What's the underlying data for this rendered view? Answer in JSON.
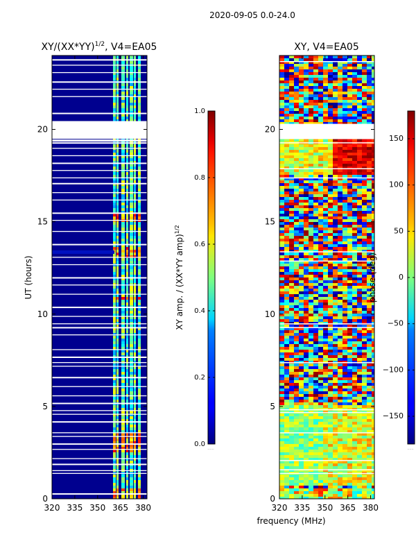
{
  "suptitle": "2020-09-05 0.0-24.0",
  "shared_xlabel": "frequency (MHz)",
  "chart_data": [
    {
      "type": "heatmap",
      "title": "XY/(XX*YY)^{1/2}, V4=EA05",
      "title_main": "XY/(XX*YY)",
      "title_sup": "1/2",
      "title_rest": ", V4=EA05",
      "ylabel": "UT (hours)",
      "xlim": [
        320,
        382.5
      ],
      "ylim": [
        0,
        24
      ],
      "x_ticks": [
        "320",
        "335",
        "350",
        "365",
        "380"
      ],
      "x_tick_values": [
        320,
        335,
        350,
        365,
        380
      ],
      "y_ticks": [
        "0",
        "5",
        "10",
        "15",
        "20"
      ],
      "y_tick_values": [
        0,
        5,
        10,
        15,
        20
      ],
      "colorbar": {
        "label_main": "XY amp. / (XX*YY amp)",
        "label_sup": "1/2",
        "range": [
          0.0,
          1.0
        ],
        "ticks": [
          "0.0",
          "0.2",
          "0.4",
          "0.6",
          "0.8",
          "1.0"
        ],
        "tick_values": [
          0.0,
          0.2,
          0.4,
          0.6,
          0.8,
          1.0
        ],
        "footer": "......"
      }
    },
    {
      "type": "heatmap",
      "title": "XY, V4=EA05",
      "xlim": [
        320,
        382.5
      ],
      "ylim": [
        0,
        24
      ],
      "x_ticks": [
        "320",
        "335",
        "350",
        "365",
        "380"
      ],
      "x_tick_values": [
        320,
        335,
        350,
        365,
        380
      ],
      "y_ticks": [
        "0",
        "5",
        "10",
        "15",
        "20"
      ],
      "y_tick_values": [
        0,
        5,
        10,
        15,
        20
      ],
      "colorbar": {
        "label": "phase (deg)",
        "range": [
          -180,
          180
        ],
        "ticks": [
          "−150",
          "−100",
          "−50",
          "0",
          "50",
          "100",
          "150"
        ],
        "tick_values": [
          -150,
          -100,
          -50,
          0,
          50,
          100,
          150
        ],
        "footer": "......"
      }
    }
  ]
}
